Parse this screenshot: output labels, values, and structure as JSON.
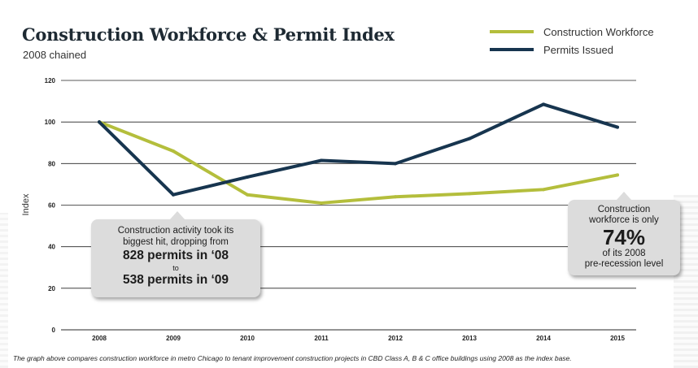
{
  "header": {
    "title": "Construction Workforce & Permit Index",
    "subtitle": "2008 chained"
  },
  "chart_data": {
    "type": "line",
    "x": [
      "2008",
      "2009",
      "2010",
      "2011",
      "2012",
      "2013",
      "2014",
      "2015"
    ],
    "ylabel": "Index",
    "xlabel": "",
    "ylim": [
      0,
      120
    ],
    "yticks": [
      "0",
      "20",
      "40",
      "60",
      "80",
      "100",
      "120"
    ],
    "grid": true,
    "legend_position": "top-right",
    "series": [
      {
        "name": "Construction Workforce",
        "color": "#b4be3c",
        "values": [
          100,
          86,
          65,
          61,
          64,
          65.5,
          67.5,
          74.5
        ]
      },
      {
        "name": "Permits Issued",
        "color": "#17354f",
        "values": [
          100,
          65,
          73.5,
          81.5,
          80,
          92,
          108.5,
          97.5
        ]
      }
    ]
  },
  "callouts": {
    "left": {
      "line1": "Construction activity took its",
      "line2": "biggest hit, dropping from",
      "big1": "828 permits in ‘08",
      "small": "to",
      "big2": "538 permits in ‘09"
    },
    "right": {
      "line1": "Construction",
      "line2": "workforce is only",
      "big": "74%",
      "line3": "of its 2008",
      "line4": "pre-recession level"
    }
  },
  "footnote": "The graph above compares construction workforce in metro Chicago to tenant improvement construction projects in CBD Class A, B & C office buildings using 2008 as the index base."
}
